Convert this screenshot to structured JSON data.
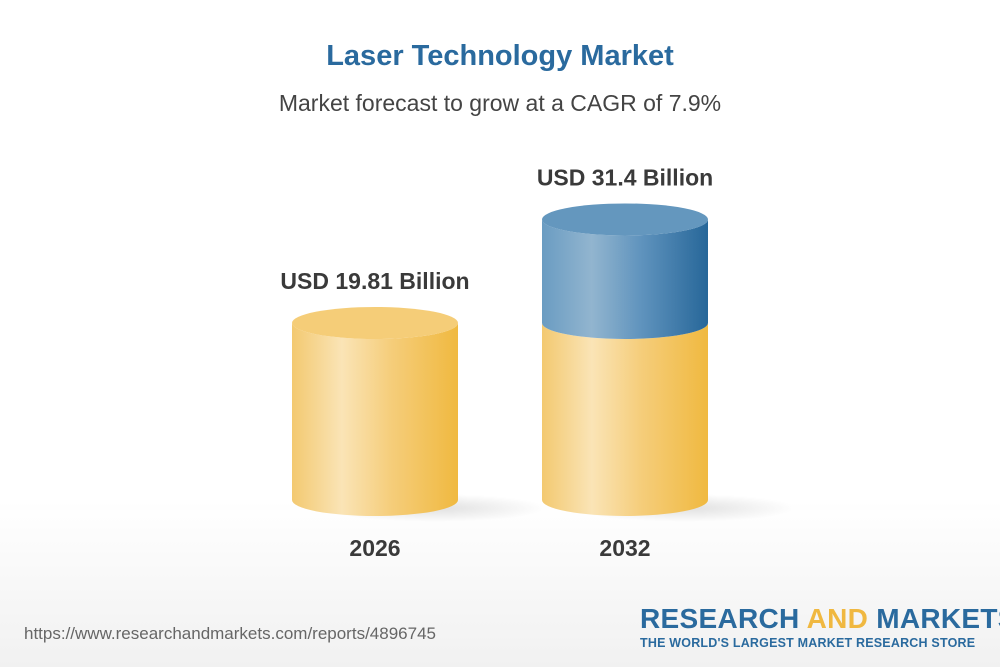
{
  "chart_data": {
    "type": "bar",
    "title": "Laser Technology Market",
    "subtitle": "Market forecast to grow at a CAGR of 7.9%",
    "categories": [
      "2026",
      "2032"
    ],
    "values": [
      19.81,
      31.4
    ],
    "data_labels": [
      "USD 19.81 Billion",
      "USD 31.4 Billion"
    ],
    "unit": "USD Billion",
    "style": "3d-cylinder",
    "colors": {
      "base": "#f3c660",
      "growth": "#3a78aa",
      "title": "#2a6a9e"
    },
    "grid": false
  },
  "footer": {
    "url": "https://www.researchandmarkets.com/reports/4896745",
    "logo": {
      "part1": "RESEARCH ",
      "part2": "AND",
      "part3": " MARKETS",
      "tagline": "THE WORLD'S LARGEST MARKET RESEARCH STORE"
    }
  }
}
